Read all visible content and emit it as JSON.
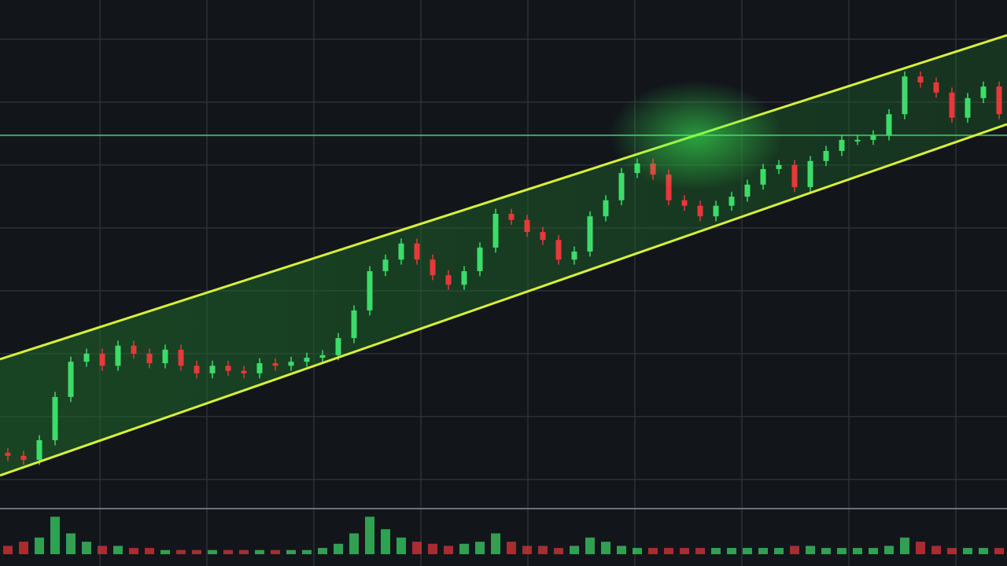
{
  "chart_data": {
    "type": "candlestick",
    "open": [
      10.0,
      9.4,
      8.6,
      12.5,
      21.1,
      28.1,
      29.7,
      27.3,
      31.3,
      29.7,
      27.8,
      30.5,
      27.3,
      25.8,
      27.3,
      26.3,
      25.8,
      27.8,
      27.3,
      28.1,
      28.9,
      29.4,
      32.8,
      38.3,
      46.1,
      48.4,
      51.6,
      48.4,
      45.3,
      43.4,
      46.1,
      50.8,
      57.5,
      56.3,
      53.9,
      52.3,
      48.4,
      50.0,
      57.0,
      60.2,
      65.6,
      67.5,
      65.3,
      60.2,
      59.1,
      57.0,
      59.1,
      60.9,
      63.3,
      66.4,
      67.2,
      62.8,
      68.0,
      70.0,
      72.2,
      72.2,
      73.1,
      77.3,
      84.8,
      83.6,
      81.6,
      76.6,
      80.5,
      82.8
    ],
    "close": [
      9.4,
      8.6,
      12.5,
      21.1,
      28.1,
      29.7,
      27.3,
      31.3,
      29.7,
      27.8,
      30.5,
      27.3,
      25.8,
      27.3,
      26.3,
      25.8,
      27.8,
      27.3,
      28.1,
      28.9,
      29.4,
      32.8,
      38.3,
      46.1,
      48.4,
      51.6,
      48.4,
      45.3,
      43.4,
      46.1,
      50.8,
      57.5,
      56.3,
      53.9,
      52.3,
      48.4,
      50.0,
      57.0,
      60.2,
      65.6,
      67.5,
      65.3,
      60.2,
      59.1,
      57.0,
      59.1,
      60.9,
      63.3,
      66.4,
      67.2,
      62.8,
      68.0,
      70.0,
      72.2,
      72.2,
      73.1,
      77.3,
      84.8,
      83.6,
      81.6,
      76.6,
      80.5,
      82.8,
      77.3
    ],
    "high": [
      11.0,
      10.4,
      13.5,
      22.1,
      29.1,
      30.7,
      30.7,
      32.3,
      32.3,
      30.7,
      31.5,
      31.5,
      28.3,
      28.3,
      28.3,
      27.3,
      28.8,
      28.8,
      29.1,
      29.9,
      30.4,
      33.8,
      39.3,
      47.1,
      49.4,
      52.6,
      52.6,
      49.4,
      46.3,
      47.1,
      51.8,
      58.5,
      58.5,
      57.3,
      54.9,
      53.3,
      51.0,
      58.0,
      61.2,
      66.6,
      68.5,
      68.5,
      66.3,
      61.2,
      60.1,
      60.1,
      61.9,
      64.3,
      67.4,
      68.2,
      68.2,
      69.0,
      71.0,
      73.2,
      73.2,
      74.1,
      78.3,
      85.8,
      85.8,
      84.6,
      82.6,
      81.5,
      83.8,
      83.8
    ],
    "low": [
      8.4,
      7.6,
      7.6,
      11.5,
      20.1,
      27.1,
      26.3,
      26.3,
      28.7,
      26.8,
      26.8,
      26.3,
      24.8,
      24.8,
      25.3,
      24.8,
      24.8,
      26.3,
      26.3,
      27.1,
      27.9,
      28.4,
      31.8,
      37.3,
      45.1,
      47.4,
      47.4,
      44.3,
      42.4,
      42.4,
      45.1,
      49.8,
      55.3,
      52.9,
      51.3,
      47.4,
      47.4,
      49.0,
      56.0,
      59.2,
      64.6,
      64.3,
      59.2,
      58.1,
      56.0,
      56.0,
      58.1,
      59.9,
      62.3,
      65.4,
      61.8,
      61.8,
      67.0,
      69.0,
      71.2,
      71.2,
      72.1,
      76.3,
      82.6,
      80.6,
      75.6,
      75.6,
      79.5,
      76.3
    ],
    "volume": [
      2,
      3,
      4,
      9,
      5,
      3,
      2,
      2,
      1.5,
      1.5,
      1,
      1,
      1,
      1,
      1,
      1,
      1,
      1,
      1,
      1,
      1.5,
      2.5,
      5,
      9,
      6,
      4,
      3,
      2.5,
      2,
      2.5,
      3,
      5,
      3,
      2,
      2,
      1.5,
      2,
      4,
      3,
      2,
      1.5,
      1.5,
      1.5,
      1.5,
      1.5,
      1.5,
      1.5,
      1.5,
      1.5,
      1.5,
      2,
      2,
      1.5,
      1.5,
      1.5,
      1.5,
      2,
      4,
      3,
      2,
      1.5,
      1.5,
      1.5,
      1.5
    ],
    "up_color": "#3ddc6a",
    "down_color": "#e8383a",
    "ylim": [
      0,
      100
    ],
    "yticks": [
      4.7,
      17.2,
      29.7,
      42.2,
      54.7,
      67.2,
      79.7,
      92.2
    ],
    "volume_lim": [
      0,
      10
    ],
    "channel": {
      "upper": [
        28.6,
        93.0
      ],
      "lower": [
        5.5,
        75.3
      ],
      "color": "#d8f03a"
    },
    "hline": 73.1,
    "grid": true
  }
}
